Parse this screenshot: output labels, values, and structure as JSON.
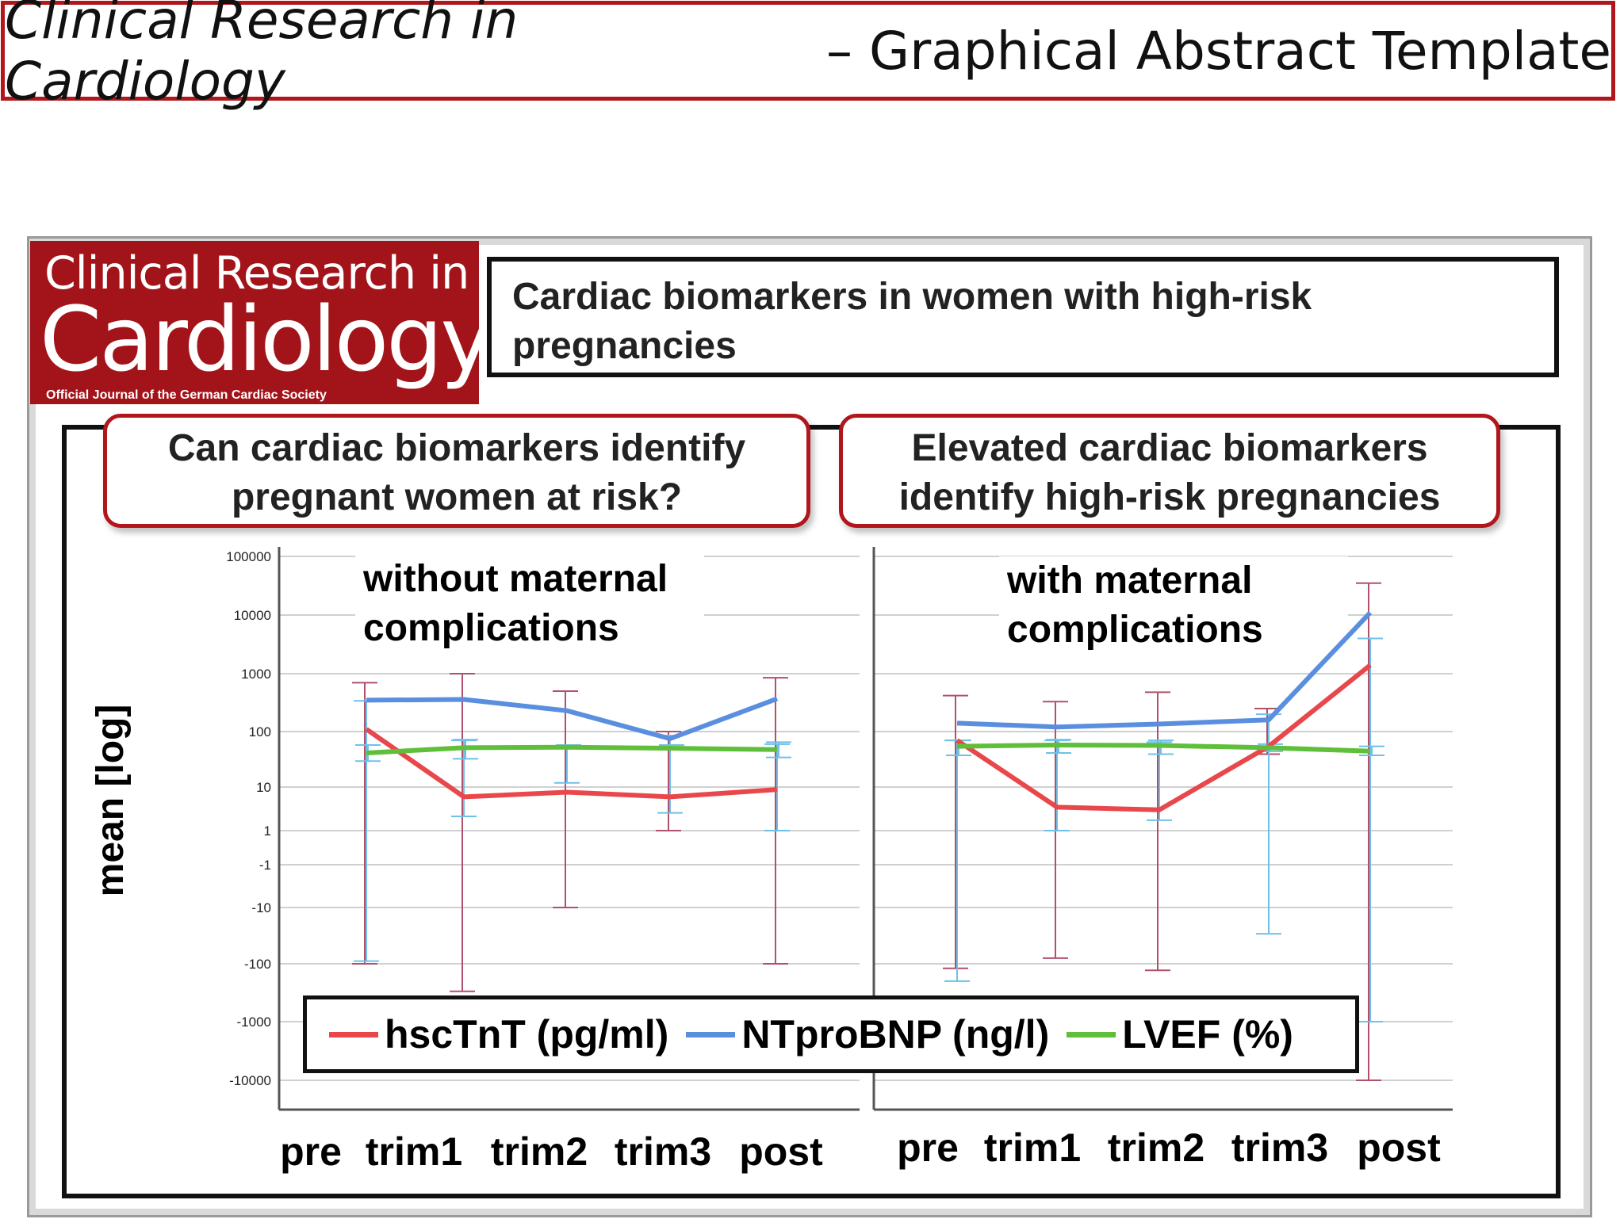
{
  "banner": {
    "journal_italic": "Clinical Research in Cardiology",
    "suffix": " – Graphical Abstract Template"
  },
  "logo": {
    "line1": "Clinical Research in",
    "line2": "Cardiology",
    "line3": "Official Journal of the German Cardiac Society"
  },
  "title": {
    "line1": "Cardiac biomarkers in women with high-risk",
    "line2": "pregnancies"
  },
  "callouts": {
    "left": {
      "line1": "Can cardiac biomarkers identify",
      "line2": "pregnant women at risk?"
    },
    "right": {
      "line1": "Elevated cardiac biomarkers",
      "line2": "identify high-risk pregnancies"
    }
  },
  "colors": {
    "accent": "#b0161c",
    "hsctnt": "#e8474b",
    "ntprobnp": "#5a8fe0",
    "lvef": "#5fbf3a"
  },
  "chart_data": {
    "type": "line",
    "ylabel": "mean [log]",
    "y_scale": "symlog",
    "y_ticks": [
      100000,
      10000,
      1000,
      100,
      10,
      1,
      -1,
      -10,
      -100,
      -1000,
      -10000
    ],
    "y_tick_labels": [
      "100000",
      "10000",
      "1000",
      "100",
      "10",
      "1",
      "-1",
      "-10",
      "-100",
      "-1000",
      "-10000"
    ],
    "categories": [
      "pre",
      "trim1",
      "trim2",
      "trim3",
      "post"
    ],
    "grid": true,
    "legend_position": "bottom",
    "legend": [
      {
        "name": "hscTnT (pg/ml)",
        "color": "#e8474b"
      },
      {
        "name": "NTproBNP (ng/l)",
        "color": "#5a8fe0"
      },
      {
        "name": "LVEF (%)",
        "color": "#5fbf3a"
      }
    ],
    "panels": [
      {
        "title_line1": "without maternal",
        "title_line2": "complications",
        "series": [
          {
            "name": "hscTnT (pg/ml)",
            "color": "#e8474b",
            "errcolor": "#b0506a",
            "values": [
              110,
              6.5,
              8,
              6.5,
              9
            ],
            "lower": [
              -100,
              -300,
              -10,
              1,
              -100
            ],
            "upper": [
              700,
              1000,
              500,
              100,
              850
            ]
          },
          {
            "name": "NTproBNP (ng/l)",
            "color": "#5a8fe0",
            "errcolor": "#6fc0e8",
            "values": [
              350,
              360,
              230,
              75,
              370
            ],
            "lower": [
              -90,
              2.5,
              12,
              3,
              1
            ],
            "upper": [
              340,
              70,
              55,
              85,
              60
            ]
          },
          {
            "name": "LVEF (%)",
            "color": "#5fbf3a",
            "errcolor": "#6fc0e8",
            "values": [
              42,
              52,
              53,
              51,
              48
            ],
            "lower": [
              30,
              33,
              50,
              48,
              35
            ],
            "upper": [
              58,
              72,
              58,
              58,
              65
            ]
          }
        ]
      },
      {
        "title_line1": "with maternal",
        "title_line2": "complications",
        "series": [
          {
            "name": "hscTnT (pg/ml)",
            "color": "#e8474b",
            "errcolor": "#b0506a",
            "values": [
              70,
              4,
              3.5,
              55,
              1400
            ],
            "lower": [
              -120,
              -80,
              -130,
              40,
              -10000
            ],
            "upper": [
              420,
              330,
              480,
              250,
              35000
            ]
          },
          {
            "name": "NTproBNP (ng/l)",
            "color": "#5a8fe0",
            "errcolor": "#6fc0e8",
            "values": [
              140,
              120,
              135,
              160,
              11000
            ],
            "lower": [
              -200,
              1,
              2,
              -30,
              -1000
            ],
            "upper": [
              70,
              70,
              65,
              200,
              4000
            ]
          },
          {
            "name": "LVEF (%)",
            "color": "#5fbf3a",
            "errcolor": "#6fc0e8",
            "values": [
              55,
              58,
              57,
              52,
              45
            ],
            "lower": [
              38,
              42,
              40,
              45,
              38
            ],
            "upper": [
              70,
              72,
              70,
              60,
              55
            ]
          }
        ]
      }
    ]
  }
}
